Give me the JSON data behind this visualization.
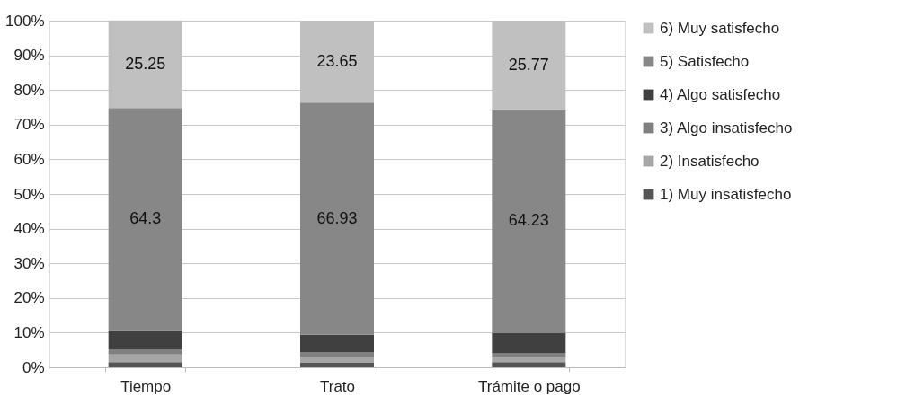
{
  "chart_data": {
    "type": "bar",
    "stacked": true,
    "categories": [
      "Tiempo",
      "Trato",
      "Trámite o pago"
    ],
    "series": [
      {
        "name": "1) Muy insatisfecho",
        "color": "#555555",
        "values": [
          1.5,
          1.3,
          1.5
        ]
      },
      {
        "name": "2) Insatisfecho",
        "color": "#a6a6a6",
        "values": [
          2.2,
          1.8,
          1.5
        ]
      },
      {
        "name": "3) Algo insatisfecho",
        "color": "#808080",
        "values": [
          1.5,
          1.3,
          1.0
        ]
      },
      {
        "name": "4) Algo satisfecho",
        "color": "#404040",
        "values": [
          5.3,
          5.0,
          6.0
        ]
      },
      {
        "name": "5) Satisfecho",
        "color": "#878787",
        "values": [
          64.3,
          66.93,
          64.23
        ],
        "value_labels": [
          "64.3",
          "66.93",
          "64.23"
        ]
      },
      {
        "name": "6) Muy satisfecho",
        "color": "#c0c0c0",
        "values": [
          25.25,
          23.65,
          25.77
        ],
        "value_labels": [
          "25.25",
          "23.65",
          "25.77"
        ]
      }
    ],
    "ylim": [
      0,
      100
    ],
    "yticks": [
      {
        "value": 0,
        "label": "0%"
      },
      {
        "value": 10,
        "label": "10%"
      },
      {
        "value": 20,
        "label": "20%"
      },
      {
        "value": 30,
        "label": "30%"
      },
      {
        "value": 40,
        "label": "40%"
      },
      {
        "value": 50,
        "label": "50%"
      },
      {
        "value": 60,
        "label": "60%"
      },
      {
        "value": 70,
        "label": "70%"
      },
      {
        "value": 80,
        "label": "80%"
      },
      {
        "value": 90,
        "label": "90%"
      },
      {
        "value": 100,
        "label": "100%"
      }
    ],
    "grid": "y",
    "legend": "right"
  }
}
